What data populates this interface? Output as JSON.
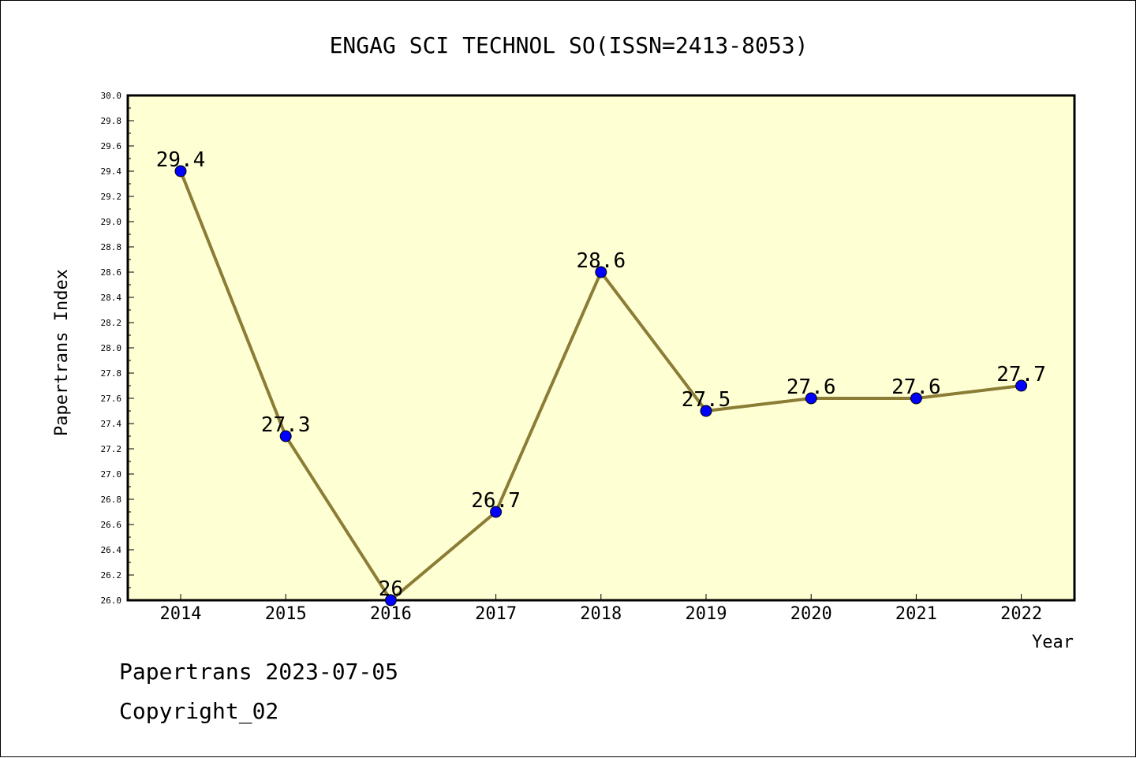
{
  "chart_data": {
    "type": "line",
    "title": "ENGAG SCI TECHNOL SO(ISSN=2413-8053)",
    "xlabel": "Year",
    "ylabel": "Papertrans Index",
    "x": [
      "2014",
      "2015",
      "2016",
      "2017",
      "2018",
      "2019",
      "2020",
      "2021",
      "2022"
    ],
    "values": [
      29.4,
      27.3,
      26.0,
      26.7,
      28.6,
      27.5,
      27.6,
      27.6,
      27.7
    ],
    "data_labels": [
      "29.4",
      "27.3",
      "26",
      "26.7",
      "28.6",
      "27.5",
      "27.6",
      "27.6",
      "27.7"
    ],
    "ylim": [
      26.0,
      30.0
    ],
    "yticks": [
      "26.0",
      "26.2",
      "26.4",
      "26.6",
      "26.8",
      "27.0",
      "27.2",
      "27.4",
      "27.6",
      "27.8",
      "28.0",
      "28.2",
      "28.4",
      "28.6",
      "28.8",
      "29.0",
      "29.2",
      "29.4",
      "29.6",
      "29.8",
      "30.0"
    ],
    "grid": false,
    "colors": {
      "line": "#8b7d36",
      "marker": "#0000ff",
      "plot_bg": "#ffffd4"
    }
  },
  "footer": {
    "line1": "Papertrans 2023-07-05",
    "line2": "Copyright_02"
  }
}
